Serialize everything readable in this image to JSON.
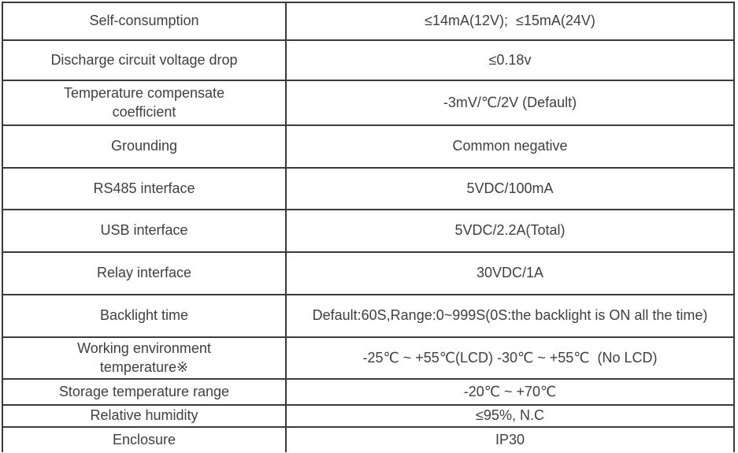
{
  "table": {
    "rows": [
      {
        "label": "Self-consumption",
        "value": "≤14mA(12V);  ≤15mA(24V)"
      },
      {
        "label": "Discharge circuit voltage drop",
        "value": "≤0.18v"
      },
      {
        "label": "Temperature compensate coefficient",
        "value": "-3mV/℃/2V (Default)"
      },
      {
        "label": "Grounding",
        "value": "Common negative"
      },
      {
        "label": "RS485 interface",
        "value": "5VDC/100mA"
      },
      {
        "label": "USB interface",
        "value": "5VDC/2.2A(Total)"
      },
      {
        "label": "Relay interface",
        "value": "30VDC/1A"
      },
      {
        "label": "Backlight time",
        "value": "Default:60S,Range:0~999S(0S:the backlight is ON all the time)"
      },
      {
        "label": "Working environment temperature※",
        "value": "-25℃ ~ +55℃(LCD) -30℃ ~ +55℃  (No LCD)"
      },
      {
        "label": "Storage temperature range",
        "value": "-20℃ ~ +70℃"
      },
      {
        "label": "Relative humidity",
        "value": "≤95%, N.C"
      },
      {
        "label": "Enclosure",
        "value": "IP30"
      }
    ]
  },
  "colors": {
    "border": "#3b3b3b",
    "text": "#3f3f3f",
    "background": "#ffffff"
  }
}
